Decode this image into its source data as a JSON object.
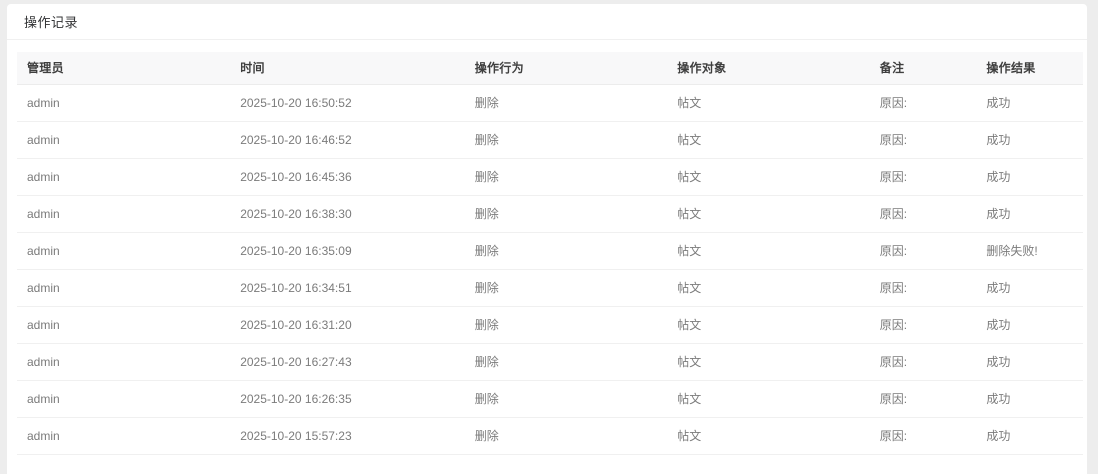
{
  "panel": {
    "title": "操作记录"
  },
  "table": {
    "columns": [
      {
        "key": "admin",
        "label": "管理员"
      },
      {
        "key": "time",
        "label": "时间"
      },
      {
        "key": "action",
        "label": "操作行为"
      },
      {
        "key": "target",
        "label": "操作对象"
      },
      {
        "key": "remark",
        "label": "备注"
      },
      {
        "key": "result",
        "label": "操作结果"
      }
    ],
    "rows": [
      {
        "admin": "admin",
        "time": "2025-10-20 16:50:52",
        "action": "删除",
        "target": "帖文",
        "remark": "原因:",
        "result": "成功"
      },
      {
        "admin": "admin",
        "time": "2025-10-20 16:46:52",
        "action": "删除",
        "target": "帖文",
        "remark": "原因:",
        "result": "成功"
      },
      {
        "admin": "admin",
        "time": "2025-10-20 16:45:36",
        "action": "删除",
        "target": "帖文",
        "remark": "原因:",
        "result": "成功"
      },
      {
        "admin": "admin",
        "time": "2025-10-20 16:38:30",
        "action": "删除",
        "target": "帖文",
        "remark": "原因:",
        "result": "成功"
      },
      {
        "admin": "admin",
        "time": "2025-10-20 16:35:09",
        "action": "删除",
        "target": "帖文",
        "remark": "原因:",
        "result": "删除失败!"
      },
      {
        "admin": "admin",
        "time": "2025-10-20 16:34:51",
        "action": "删除",
        "target": "帖文",
        "remark": "原因:",
        "result": "成功"
      },
      {
        "admin": "admin",
        "time": "2025-10-20 16:31:20",
        "action": "删除",
        "target": "帖文",
        "remark": "原因:",
        "result": "成功"
      },
      {
        "admin": "admin",
        "time": "2025-10-20 16:27:43",
        "action": "删除",
        "target": "帖文",
        "remark": "原因:",
        "result": "成功"
      },
      {
        "admin": "admin",
        "time": "2025-10-20 16:26:35",
        "action": "删除",
        "target": "帖文",
        "remark": "原因:",
        "result": "成功"
      },
      {
        "admin": "admin",
        "time": "2025-10-20 15:57:23",
        "action": "删除",
        "target": "帖文",
        "remark": "原因:",
        "result": "成功"
      }
    ]
  },
  "colors": {
    "page_background": "#ededed",
    "card_background": "#ffffff",
    "header_row_background": "#f8f8f9",
    "row_border": "#f0f0f0",
    "title_text": "#303133",
    "header_text": "#3f3f3f",
    "body_text": "#7b7b7b"
  }
}
